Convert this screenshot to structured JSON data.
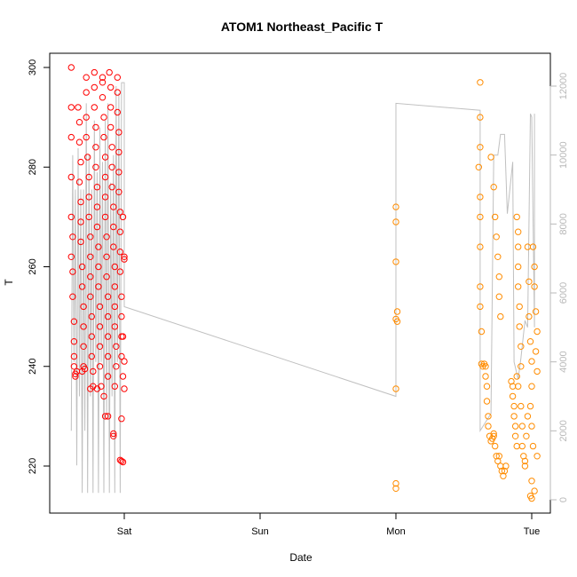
{
  "chart_data": {
    "type": "scatter",
    "title": "ATOM1 Northeast_Pacific T",
    "xlabel": "Date",
    "ylabel": "T",
    "x_ticks": [
      "Sat",
      "Sun",
      "Mon",
      "Tue"
    ],
    "y_ticks": [
      220,
      240,
      260,
      280,
      300
    ],
    "y_right_ticks": [
      0,
      2000,
      4000,
      6000,
      8000,
      10000,
      12000
    ],
    "xlim_days": [
      -0.45,
      3.1
    ],
    "ylim": [
      213,
      302
    ],
    "y_right_lim": [
      -300,
      12500
    ],
    "colors": {
      "early_points": "#ff0000",
      "late_points": "#ff8c00",
      "line": "#c0c0c0",
      "right_axis": "#b8b8b8"
    },
    "series_points_early": [
      [
        -0.39,
        300
      ],
      [
        -0.39,
        292
      ],
      [
        -0.39,
        286
      ],
      [
        -0.39,
        278
      ],
      [
        -0.39,
        270
      ],
      [
        -0.38,
        266
      ],
      [
        -0.39,
        262
      ],
      [
        -0.38,
        259
      ],
      [
        -0.38,
        254
      ],
      [
        -0.37,
        249
      ],
      [
        -0.37,
        245
      ],
      [
        -0.37,
        242
      ],
      [
        -0.37,
        240
      ],
      [
        -0.36,
        238
      ],
      [
        -0.36,
        238.5
      ],
      [
        -0.35,
        239
      ],
      [
        -0.34,
        292
      ],
      [
        -0.33,
        289
      ],
      [
        -0.33,
        285
      ],
      [
        -0.32,
        281
      ],
      [
        -0.33,
        277
      ],
      [
        -0.32,
        273
      ],
      [
        -0.32,
        269
      ],
      [
        -0.32,
        265
      ],
      [
        -0.31,
        260
      ],
      [
        -0.31,
        256
      ],
      [
        -0.3,
        252
      ],
      [
        -0.3,
        248
      ],
      [
        -0.3,
        244
      ],
      [
        -0.3,
        240
      ],
      [
        -0.31,
        239
      ],
      [
        -0.29,
        239.5
      ],
      [
        -0.28,
        298
      ],
      [
        -0.28,
        295
      ],
      [
        -0.28,
        290
      ],
      [
        -0.28,
        286
      ],
      [
        -0.27,
        282
      ],
      [
        -0.26,
        278
      ],
      [
        -0.26,
        274
      ],
      [
        -0.26,
        270
      ],
      [
        -0.25,
        266
      ],
      [
        -0.25,
        262
      ],
      [
        -0.25,
        258
      ],
      [
        -0.25,
        254
      ],
      [
        -0.24,
        250
      ],
      [
        -0.24,
        246
      ],
      [
        -0.24,
        242
      ],
      [
        -0.23,
        239
      ],
      [
        -0.25,
        235.5
      ],
      [
        -0.23,
        236
      ],
      [
        -0.22,
        299
      ],
      [
        -0.22,
        296
      ],
      [
        -0.22,
        292
      ],
      [
        -0.21,
        288
      ],
      [
        -0.21,
        284
      ],
      [
        -0.21,
        280
      ],
      [
        -0.2,
        276
      ],
      [
        -0.2,
        272
      ],
      [
        -0.2,
        268
      ],
      [
        -0.19,
        264
      ],
      [
        -0.19,
        260
      ],
      [
        -0.19,
        256
      ],
      [
        -0.18,
        252
      ],
      [
        -0.18,
        248
      ],
      [
        -0.18,
        244
      ],
      [
        -0.18,
        240
      ],
      [
        -0.17,
        236
      ],
      [
        -0.2,
        235.5
      ],
      [
        -0.16,
        298
      ],
      [
        -0.16,
        297
      ],
      [
        -0.16,
        294
      ],
      [
        -0.15,
        290
      ],
      [
        -0.15,
        286
      ],
      [
        -0.14,
        282
      ],
      [
        -0.14,
        278
      ],
      [
        -0.14,
        274
      ],
      [
        -0.14,
        270
      ],
      [
        -0.13,
        266
      ],
      [
        -0.13,
        262
      ],
      [
        -0.13,
        258
      ],
      [
        -0.12,
        254
      ],
      [
        -0.12,
        250
      ],
      [
        -0.12,
        246
      ],
      [
        -0.12,
        242
      ],
      [
        -0.12,
        238
      ],
      [
        -0.14,
        230
      ],
      [
        -0.12,
        230
      ],
      [
        -0.15,
        234
      ],
      [
        -0.11,
        299
      ],
      [
        -0.1,
        296
      ],
      [
        -0.1,
        292
      ],
      [
        -0.1,
        288
      ],
      [
        -0.09,
        284
      ],
      [
        -0.09,
        280
      ],
      [
        -0.09,
        276
      ],
      [
        -0.08,
        272
      ],
      [
        -0.08,
        268
      ],
      [
        -0.08,
        264
      ],
      [
        -0.07,
        260
      ],
      [
        -0.07,
        256
      ],
      [
        -0.07,
        252
      ],
      [
        -0.07,
        248
      ],
      [
        -0.06,
        244
      ],
      [
        -0.06,
        240
      ],
      [
        -0.07,
        236
      ],
      [
        -0.08,
        226
      ],
      [
        -0.08,
        226.5
      ],
      [
        -0.05,
        298
      ],
      [
        -0.05,
        295
      ],
      [
        -0.05,
        291
      ],
      [
        -0.04,
        287
      ],
      [
        -0.04,
        283
      ],
      [
        -0.04,
        279
      ],
      [
        -0.04,
        275
      ],
      [
        -0.03,
        271
      ],
      [
        -0.03,
        267
      ],
      [
        -0.03,
        263
      ],
      [
        -0.03,
        259
      ],
      [
        -0.02,
        254
      ],
      [
        -0.02,
        250
      ],
      [
        -0.02,
        246
      ],
      [
        -0.02,
        242
      ],
      [
        -0.01,
        238
      ],
      [
        -0.02,
        229.5
      ],
      [
        -0.01,
        270
      ],
      [
        0.0,
        262
      ],
      [
        0.0,
        261.5
      ],
      [
        -0.01,
        246
      ],
      [
        0.0,
        241
      ],
      [
        0.0,
        235.5
      ],
      [
        -0.02,
        221
      ],
      [
        -0.01,
        220.8
      ],
      [
        -0.03,
        221.2
      ]
    ],
    "series_points_late": [
      [
        2.0,
        272
      ],
      [
        2.0,
        269
      ],
      [
        2.0,
        261
      ],
      [
        2.01,
        251
      ],
      [
        2.0,
        249.5
      ],
      [
        2.01,
        249
      ],
      [
        2.0,
        235.5
      ],
      [
        2.0,
        216.5
      ],
      [
        2.0,
        215.5
      ],
      [
        2.62,
        297
      ],
      [
        2.62,
        290
      ],
      [
        2.62,
        284
      ],
      [
        2.61,
        280
      ],
      [
        2.62,
        274
      ],
      [
        2.62,
        270
      ],
      [
        2.62,
        264
      ],
      [
        2.62,
        256
      ],
      [
        2.62,
        252
      ],
      [
        2.63,
        247
      ],
      [
        2.63,
        240.5
      ],
      [
        2.64,
        240
      ],
      [
        2.65,
        240.5
      ],
      [
        2.66,
        240
      ],
      [
        2.66,
        238
      ],
      [
        2.67,
        236
      ],
      [
        2.67,
        233
      ],
      [
        2.68,
        230
      ],
      [
        2.68,
        228
      ],
      [
        2.69,
        226
      ],
      [
        2.7,
        225
      ],
      [
        2.71,
        225.5
      ],
      [
        2.72,
        226
      ],
      [
        2.72,
        226.5
      ],
      [
        2.73,
        224
      ],
      [
        2.74,
        222
      ],
      [
        2.75,
        221
      ],
      [
        2.76,
        222
      ],
      [
        2.77,
        220
      ],
      [
        2.78,
        219
      ],
      [
        2.79,
        218
      ],
      [
        2.8,
        219
      ],
      [
        2.81,
        220
      ],
      [
        2.7,
        282
      ],
      [
        2.72,
        276
      ],
      [
        2.73,
        270
      ],
      [
        2.74,
        266
      ],
      [
        2.75,
        262
      ],
      [
        2.76,
        258
      ],
      [
        2.76,
        254
      ],
      [
        2.77,
        250
      ],
      [
        2.85,
        237
      ],
      [
        2.86,
        236
      ],
      [
        2.86,
        234
      ],
      [
        2.87,
        232
      ],
      [
        2.87,
        230
      ],
      [
        2.88,
        228
      ],
      [
        2.88,
        226
      ],
      [
        2.89,
        224
      ],
      [
        2.89,
        238
      ],
      [
        2.9,
        236
      ],
      [
        2.89,
        270
      ],
      [
        2.9,
        267
      ],
      [
        2.9,
        264
      ],
      [
        2.9,
        260
      ],
      [
        2.9,
        256
      ],
      [
        2.91,
        252
      ],
      [
        2.91,
        248
      ],
      [
        2.92,
        244
      ],
      [
        2.92,
        240
      ],
      [
        2.92,
        232
      ],
      [
        2.93,
        228
      ],
      [
        2.93,
        224
      ],
      [
        2.94,
        222
      ],
      [
        2.95,
        221
      ],
      [
        2.95,
        220
      ],
      [
        2.96,
        226
      ],
      [
        2.97,
        230
      ],
      [
        2.97,
        264
      ],
      [
        2.98,
        257
      ],
      [
        2.98,
        250
      ],
      [
        2.99,
        245
      ],
      [
        3.0,
        241
      ],
      [
        3.0,
        236
      ],
      [
        2.99,
        232
      ],
      [
        3.0,
        228
      ],
      [
        3.01,
        224
      ],
      [
        3.0,
        217
      ],
      [
        2.99,
        214
      ],
      [
        3.0,
        213.5
      ],
      [
        3.02,
        215
      ],
      [
        3.01,
        264
      ],
      [
        3.02,
        260
      ],
      [
        3.02,
        256
      ],
      [
        3.03,
        251
      ],
      [
        3.04,
        247
      ],
      [
        3.03,
        243
      ],
      [
        3.04,
        239
      ],
      [
        3.04,
        222
      ]
    ],
    "line_series_right_axis": [
      [
        -0.39,
        2000
      ],
      [
        -0.38,
        10000
      ],
      [
        -0.37,
        4000
      ],
      [
        -0.36,
        9000
      ],
      [
        -0.35,
        1000
      ],
      [
        -0.34,
        10200
      ],
      [
        -0.33,
        3000
      ],
      [
        -0.32,
        9000
      ],
      [
        -0.31,
        200
      ],
      [
        -0.3,
        9000
      ],
      [
        -0.29,
        2000
      ],
      [
        -0.28,
        11500
      ],
      [
        -0.27,
        200
      ],
      [
        -0.26,
        10000
      ],
      [
        -0.25,
        3000
      ],
      [
        -0.24,
        9000
      ],
      [
        -0.23,
        200
      ],
      [
        -0.22,
        11000
      ],
      [
        -0.21,
        4000
      ],
      [
        -0.2,
        9500
      ],
      [
        -0.19,
        200
      ],
      [
        -0.18,
        10800
      ],
      [
        -0.17,
        4000
      ],
      [
        -0.16,
        9800
      ],
      [
        -0.15,
        200
      ],
      [
        -0.14,
        11000
      ],
      [
        -0.13,
        2500
      ],
      [
        -0.12,
        11500
      ],
      [
        -0.11,
        200
      ],
      [
        -0.1,
        9200
      ],
      [
        -0.09,
        3000
      ],
      [
        -0.08,
        10000
      ],
      [
        -0.07,
        200
      ],
      [
        -0.06,
        12000
      ],
      [
        -0.05,
        4000
      ],
      [
        -0.04,
        11800
      ],
      [
        -0.03,
        200
      ],
      [
        -0.02,
        12100
      ],
      [
        0.0,
        12100
      ],
      [
        0.0,
        5600
      ],
      [
        2.0,
        3000
      ],
      [
        2.0,
        11500
      ],
      [
        2.62,
        11300
      ],
      [
        2.62,
        5000
      ],
      [
        2.62,
        2000
      ],
      [
        2.7,
        2500
      ],
      [
        2.72,
        10000
      ],
      [
        2.75,
        10000
      ],
      [
        2.77,
        10600
      ],
      [
        2.8,
        10600
      ],
      [
        2.82,
        8300
      ],
      [
        2.86,
        9800
      ],
      [
        2.87,
        4000
      ],
      [
        2.9,
        3500
      ],
      [
        2.92,
        4100
      ],
      [
        2.95,
        5200
      ],
      [
        2.97,
        5000
      ],
      [
        2.99,
        11200
      ],
      [
        3.0,
        11100
      ],
      [
        3.02,
        5000
      ],
      [
        3.02,
        11200
      ]
    ]
  }
}
